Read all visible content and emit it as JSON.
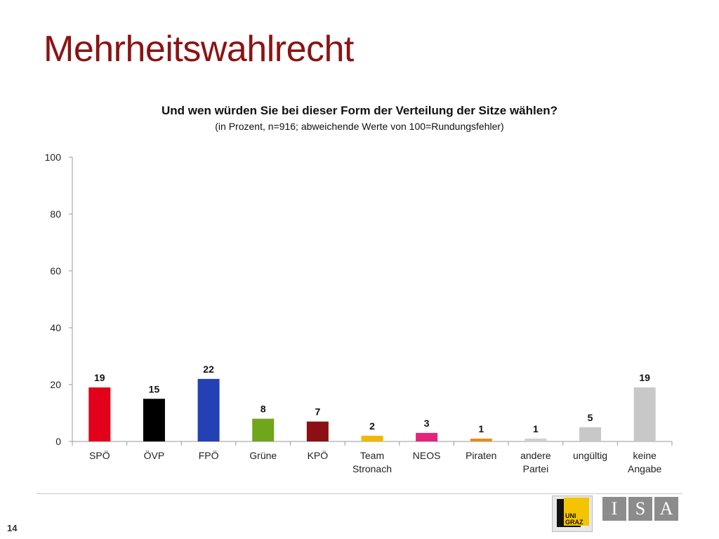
{
  "slide": {
    "title": "Mehrheitswahlrecht",
    "page_number": "14"
  },
  "logos": {
    "uni_text": [
      "UNI",
      "GRAZ"
    ],
    "isa_letters": [
      "I",
      "S",
      "A"
    ]
  },
  "chart_data": {
    "type": "bar",
    "title": "Und wen würden Sie bei dieser Form der Verteilung der Sitze wählen?",
    "subtitle": "(in Prozent, n=916; abweichende Werte von 100=Rundungsfehler)",
    "categories": [
      [
        "SPÖ"
      ],
      [
        "ÖVP"
      ],
      [
        "FPÖ"
      ],
      [
        "Grüne"
      ],
      [
        "KPÖ"
      ],
      [
        "Team",
        "Stronach"
      ],
      [
        "NEOS"
      ],
      [
        "Piraten"
      ],
      [
        "andere",
        "Partei"
      ],
      [
        "ungültig"
      ],
      [
        "keine",
        "Angabe"
      ]
    ],
    "values": [
      19,
      15,
      22,
      8,
      7,
      2,
      3,
      1,
      1,
      5,
      19
    ],
    "colors": [
      "#e2001a",
      "#000000",
      "#2341b5",
      "#6fa61c",
      "#8b0f13",
      "#f0b800",
      "#e5237b",
      "#e98b1a",
      "#cfcfcf",
      "#c8c8c8",
      "#c8c8c8"
    ],
    "ylim": [
      0,
      100
    ],
    "yticks": [
      0,
      20,
      40,
      60,
      80,
      100
    ],
    "xlabel": "",
    "ylabel": "",
    "grid": false,
    "legend": "none"
  }
}
